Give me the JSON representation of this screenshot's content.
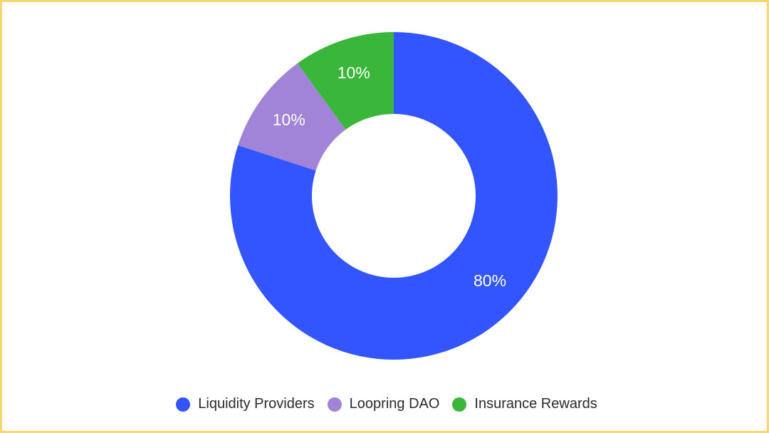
{
  "chart_data": {
    "type": "pie",
    "style": "donut",
    "categories": [
      "Liquidity Providers",
      "Loopring DAO",
      "Insurance Rewards"
    ],
    "values": [
      80,
      10,
      10
    ],
    "data_labels": [
      "80%",
      "10%",
      "10%"
    ],
    "colors": [
      "#3355ff",
      "#a183d7",
      "#3ab73a"
    ],
    "label_color": "#ffffff",
    "legend_position": "bottom",
    "start_direction": "top",
    "direction": "clockwise"
  },
  "frame": {
    "border_color": "#f7d774",
    "background": "#ffffff"
  }
}
